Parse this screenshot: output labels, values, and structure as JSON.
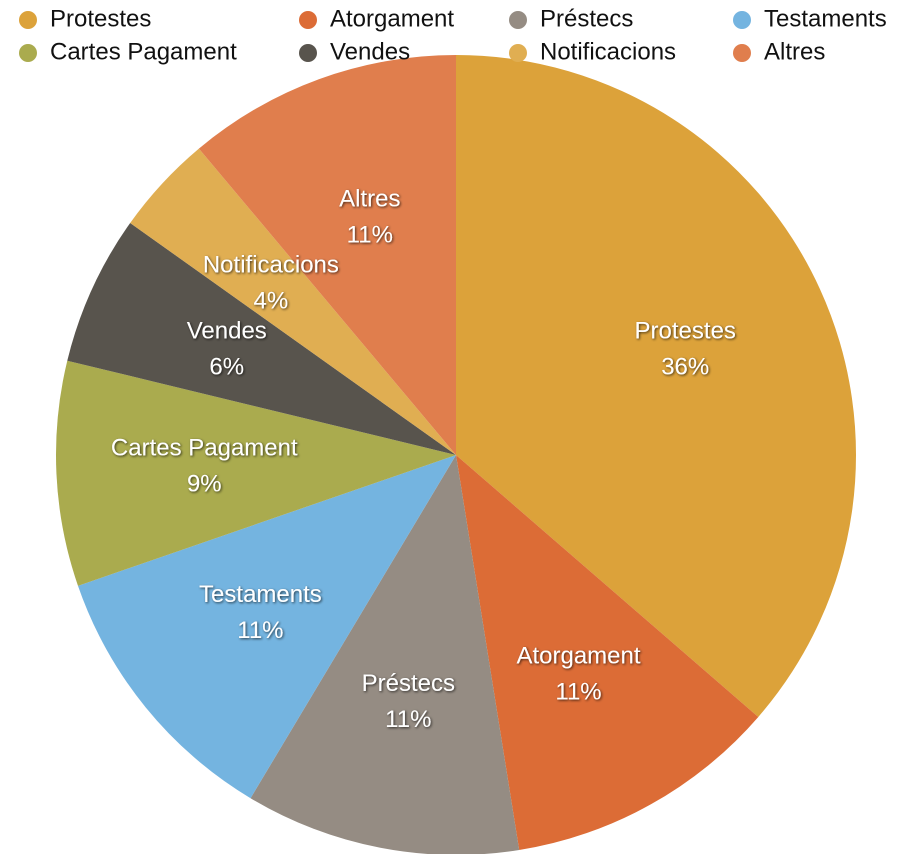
{
  "chart_data": {
    "type": "pie",
    "categories": [
      "Protestes",
      "Atorgament",
      "Préstecs",
      "Testaments",
      "Cartes Pagament",
      "Vendes",
      "Notificacions",
      "Altres"
    ],
    "values": [
      36,
      11,
      11,
      11,
      9,
      6,
      4,
      11
    ],
    "value_labels": [
      "36%",
      "11%",
      "11%",
      "11%",
      "9%",
      "6%",
      "4%",
      "11%"
    ],
    "colors": [
      "#dca23a",
      "#dc6c36",
      "#958c83",
      "#74b4e0",
      "#aaab4e",
      "#58544d",
      "#e0ae52",
      "#e07e4d"
    ],
    "legend": "top"
  }
}
